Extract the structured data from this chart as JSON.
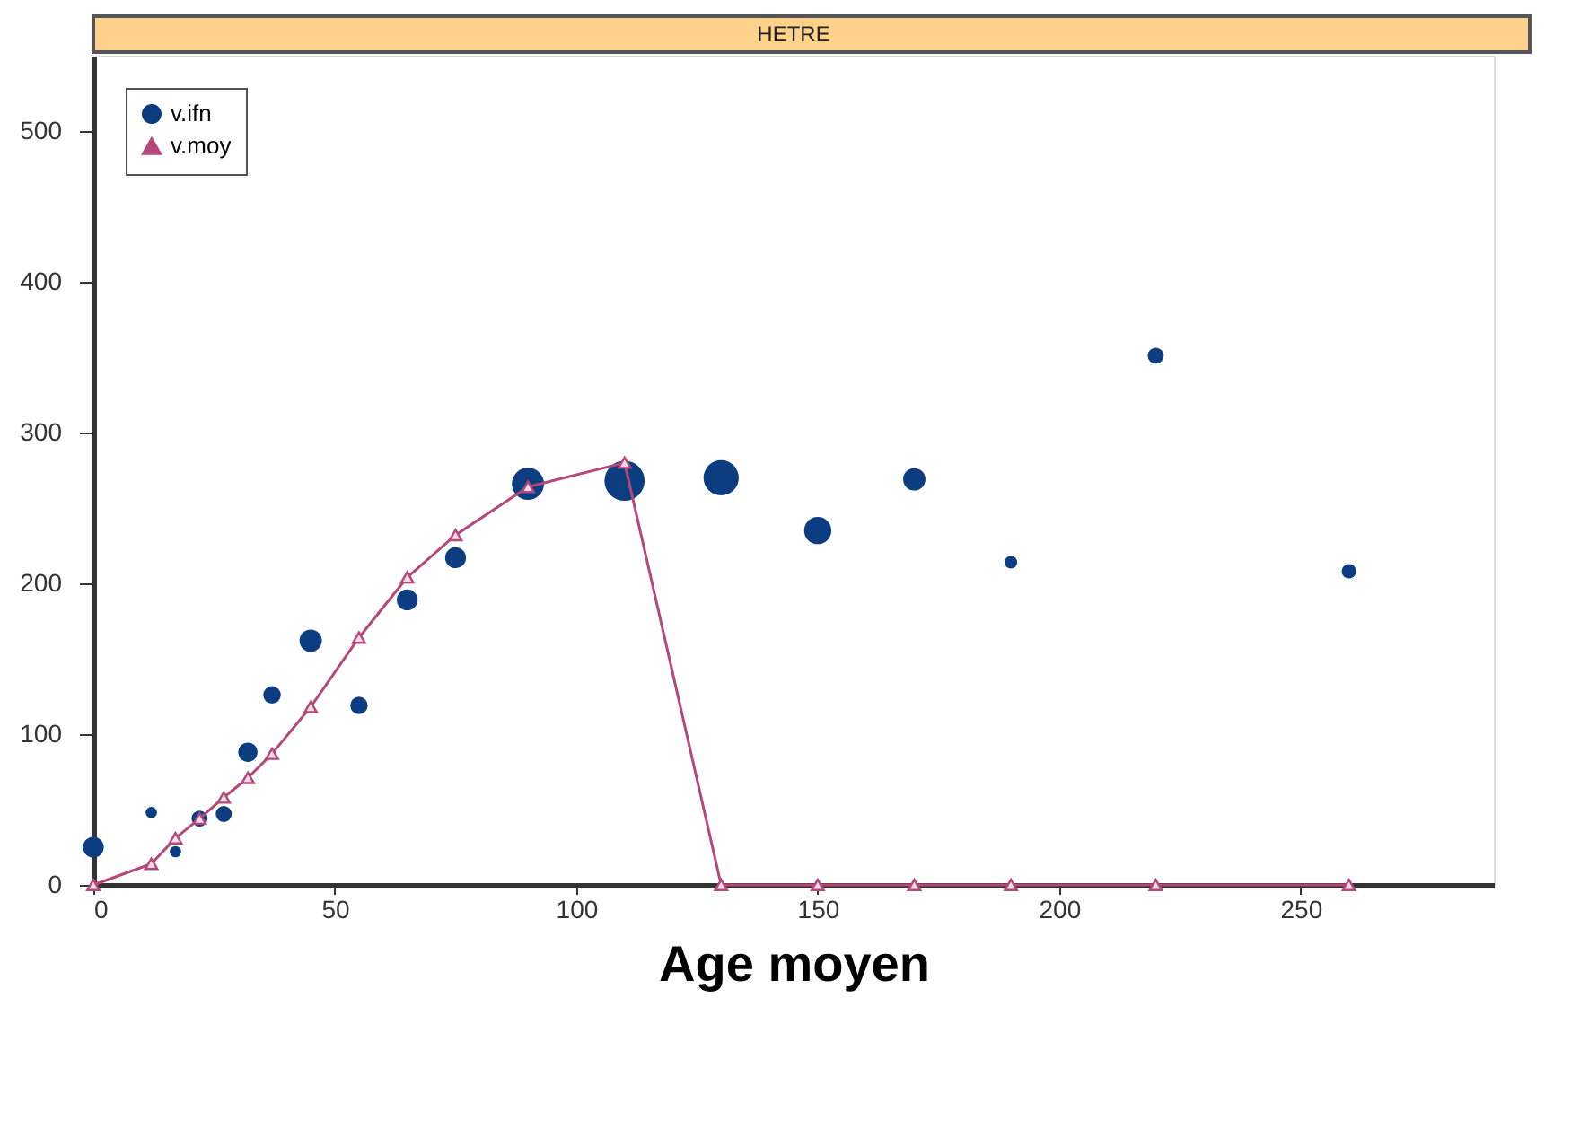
{
  "chart_data": {
    "type": "scatter",
    "title": "HETRE",
    "xlabel": "Age moyen",
    "xlim": [
      0,
      290
    ],
    "ylim": [
      0,
      550
    ],
    "xticks": [
      0,
      50,
      100,
      150,
      200,
      250
    ],
    "yticks": [
      0,
      100,
      200,
      300,
      400,
      500
    ],
    "grid": false,
    "legend": "top left",
    "series": [
      {
        "name": "v.ifn",
        "type": "bubble",
        "marker": "circle",
        "color": "#0b3d80",
        "x": [
          0,
          12,
          17,
          22,
          27,
          32,
          37,
          45,
          55,
          65,
          75,
          90,
          110,
          130,
          150,
          170,
          190,
          220,
          260
        ],
        "values": [
          25,
          48,
          22,
          44,
          47,
          88,
          126,
          162,
          119,
          189,
          217,
          266,
          268,
          270,
          235,
          269,
          214,
          351,
          208
        ],
        "sizes": [
          0.27,
          0.08,
          0.08,
          0.16,
          0.16,
          0.23,
          0.19,
          0.31,
          0.19,
          0.27,
          0.27,
          0.64,
          1,
          0.77,
          0.46,
          0.31,
          0.1,
          0.16,
          0.13
        ]
      },
      {
        "name": "v.moy",
        "type": "line",
        "marker": "triangle",
        "line_style": "solid",
        "color": "#b5487a",
        "x": [
          0,
          12,
          17,
          22,
          27,
          32,
          37,
          45,
          55,
          65,
          75,
          90,
          110,
          130,
          150,
          170,
          190,
          220,
          260
        ],
        "values": [
          0,
          14,
          31,
          44,
          58,
          71,
          87,
          118,
          164,
          204,
          232,
          264,
          280,
          0,
          0,
          0,
          0,
          0,
          0
        ]
      }
    ]
  }
}
